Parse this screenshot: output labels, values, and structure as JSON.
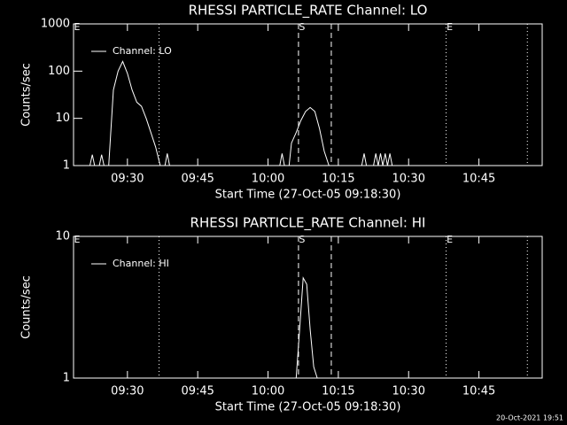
{
  "chart_data": [
    {
      "type": "line",
      "title": "RHESSI PARTICLE_RATE Channel: LO",
      "x_label": "Start Time (27-Oct-05 09:18:30)",
      "y_label": "Counts/sec",
      "log_y": true,
      "xlim": [
        "09:18:30",
        "10:58:30"
      ],
      "xticks": [
        "09:30",
        "09:45",
        "10:00",
        "10:15",
        "10:30",
        "10:45"
      ],
      "ylim": [
        1,
        1000
      ],
      "yticks": [
        1,
        10,
        100,
        1000
      ],
      "legend": "upper left",
      "x": [
        "09:22:00",
        "09:22:30",
        "09:23:00",
        "09:23:30",
        "09:24:00",
        "09:24:30",
        "09:25:00",
        "09:25:30",
        "09:26:00",
        "09:27:00",
        "09:28:00",
        "09:29:00",
        "09:30:00",
        "09:31:00",
        "09:32:00",
        "09:33:00",
        "09:34:00",
        "09:35:00",
        "09:36:00",
        "09:37:00",
        "09:37:30",
        "09:38:00",
        "09:38:30",
        "09:39:00",
        "09:40:00",
        "10:02:30",
        "10:03:00",
        "10:03:30",
        "10:04:00",
        "10:04:30",
        "10:05:00",
        "10:06:00",
        "10:07:00",
        "10:08:00",
        "10:09:00",
        "10:10:00",
        "10:11:00",
        "10:12:00",
        "10:13:00",
        "10:14:00",
        "10:20:00",
        "10:20:30",
        "10:21:00",
        "10:22:00",
        "10:22:30",
        "10:23:00",
        "10:23:30",
        "10:24:00",
        "10:24:30",
        "10:25:00",
        "10:25:30",
        "10:26:00",
        "10:26:30"
      ],
      "series": [
        {
          "name": "Channel: LO",
          "color": "#ffffff",
          "values": [
            1,
            1.7,
            1,
            null,
            1,
            1.7,
            1,
            null,
            1,
            40,
            100,
            160,
            90,
            40,
            22,
            18,
            10,
            5,
            2.5,
            1,
            null,
            1,
            1.8,
            1,
            null,
            1,
            1.8,
            1,
            null,
            1,
            3,
            5,
            9,
            14,
            17,
            14,
            6,
            2,
            1,
            null,
            1,
            1.8,
            1,
            null,
            1,
            1.8,
            1,
            1.8,
            1,
            1.8,
            1,
            1.8,
            1
          ]
        }
      ],
      "vlines": [
        {
          "x": "09:36:45",
          "style": "dotted"
        },
        {
          "x": "10:06:30",
          "style": "dashed"
        },
        {
          "x": "10:13:30",
          "style": "dashed"
        },
        {
          "x": "10:38:00",
          "style": "dotted"
        },
        {
          "x": "10:55:20",
          "style": "dotted"
        }
      ],
      "flags": [
        {
          "x": "09:18:30",
          "label": "E"
        },
        {
          "x": "10:06:30",
          "label": "S"
        },
        {
          "x": "10:38:00",
          "label": "E"
        }
      ]
    },
    {
      "type": "line",
      "title": "RHESSI PARTICLE_RATE Channel: HI",
      "x_label": "Start Time (27-Oct-05 09:18:30)",
      "y_label": "Counts/sec",
      "log_y": true,
      "xlim": [
        "09:18:30",
        "10:58:30"
      ],
      "xticks": [
        "09:30",
        "09:45",
        "10:00",
        "10:15",
        "10:30",
        "10:45"
      ],
      "ylim": [
        1,
        10
      ],
      "yticks": [
        1,
        10
      ],
      "legend": "upper left",
      "x": [
        "10:06:00",
        "10:06:45",
        "10:07:30",
        "10:08:15",
        "10:09:00",
        "10:09:45",
        "10:10:30"
      ],
      "series": [
        {
          "name": "Channel: HI",
          "color": "#ffffff",
          "values": [
            1,
            2.2,
            5.1,
            4.6,
            2.2,
            1.2,
            1
          ]
        }
      ],
      "vlines": [
        {
          "x": "09:36:45",
          "style": "dotted"
        },
        {
          "x": "10:06:30",
          "style": "dashed"
        },
        {
          "x": "10:13:30",
          "style": "dashed"
        },
        {
          "x": "10:38:00",
          "style": "dotted"
        },
        {
          "x": "10:55:20",
          "style": "dotted"
        }
      ],
      "flags": [
        {
          "x": "09:18:30",
          "label": "E"
        },
        {
          "x": "10:06:30",
          "label": "S"
        },
        {
          "x": "10:38:00",
          "label": "E"
        }
      ]
    }
  ],
  "footer": "20-Oct-2021 19:51"
}
